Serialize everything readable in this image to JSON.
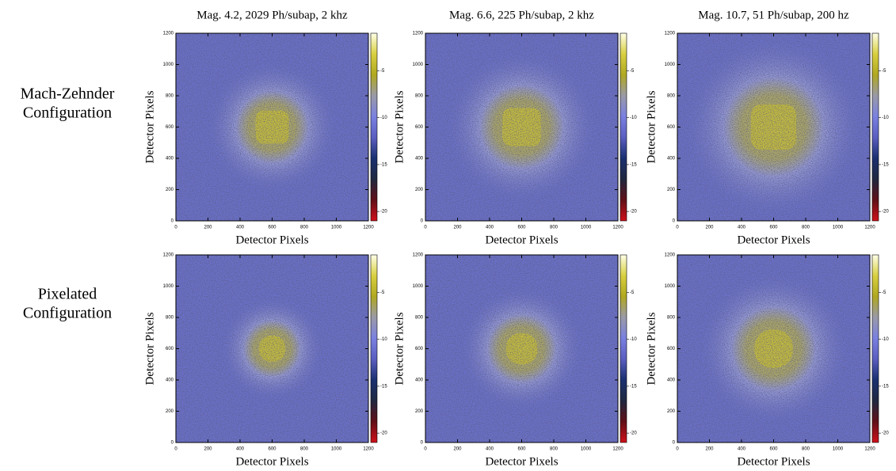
{
  "row_labels": [
    [
      "Mach-Zehnder",
      "Configuration"
    ],
    [
      "Pixelated",
      "Configuration"
    ]
  ],
  "chart_data": [
    {
      "type": "heatmap",
      "title": "Mag. 4.2, 2029 Ph/subap, 2 khz",
      "xlabel": "Detector Pixels",
      "ylabel": "Detector Pixels",
      "xlim": [
        0,
        1200
      ],
      "ylim": [
        0,
        1200
      ],
      "xticks": [
        0,
        200,
        400,
        600,
        800,
        1000,
        1200
      ],
      "yticks": [
        0,
        200,
        400,
        600,
        800,
        1000,
        1200
      ],
      "clim": [
        -21,
        -1
      ],
      "cticks": [
        -5,
        -10,
        -15,
        -20
      ],
      "colormap": [
        "#d0101a",
        "#601018",
        "#202840",
        "#1a3070",
        "#5a5ec0",
        "#7a80e0",
        "#9a9aa8",
        "#b0a820",
        "#d8d040",
        "#ffffe8"
      ]
    },
    {
      "type": "heatmap",
      "title": "Mag. 6.6, 225 Ph/subap, 2 khz",
      "xlabel": "Detector Pixels",
      "ylabel": "Detector Pixels",
      "xlim": [
        0,
        1200
      ],
      "ylim": [
        0,
        1200
      ],
      "xticks": [
        0,
        200,
        400,
        600,
        800,
        1000,
        1200
      ],
      "yticks": [
        0,
        200,
        400,
        600,
        800,
        1000,
        1200
      ],
      "clim": [
        -21,
        -1
      ],
      "cticks": [
        -5,
        -10,
        -15,
        -20
      ],
      "colormap": [
        "#d0101a",
        "#601018",
        "#202840",
        "#1a3070",
        "#5a5ec0",
        "#7a80e0",
        "#9a9aa8",
        "#b0a820",
        "#d8d040",
        "#ffffe8"
      ]
    },
    {
      "type": "heatmap",
      "title": "Mag. 10.7, 51 Ph/subap, 200 hz",
      "xlabel": "Detector Pixels",
      "ylabel": "Detector Pixels",
      "xlim": [
        0,
        1200
      ],
      "ylim": [
        0,
        1200
      ],
      "xticks": [
        0,
        200,
        400,
        600,
        800,
        1000,
        1200
      ],
      "yticks": [
        0,
        200,
        400,
        600,
        800,
        1000,
        1200
      ],
      "clim": [
        -21,
        -1
      ],
      "cticks": [
        -5,
        -10,
        -15,
        -20
      ],
      "colormap": [
        "#d0101a",
        "#601018",
        "#202840",
        "#1a3070",
        "#5a5ec0",
        "#7a80e0",
        "#9a9aa8",
        "#b0a820",
        "#d8d040",
        "#ffffe8"
      ]
    },
    {
      "type": "heatmap",
      "xlabel": "Detector Pixels",
      "ylabel": "Detector Pixels",
      "xlim": [
        0,
        1200
      ],
      "ylim": [
        0,
        1200
      ],
      "xticks": [
        0,
        200,
        400,
        600,
        800,
        1000,
        1200
      ],
      "yticks": [
        0,
        200,
        400,
        600,
        800,
        1000,
        1200
      ],
      "clim": [
        -21,
        -1
      ],
      "cticks": [
        -5,
        -10,
        -15,
        -20
      ],
      "colormap": [
        "#d0101a",
        "#601018",
        "#202840",
        "#1a3070",
        "#5a5ec0",
        "#7a80e0",
        "#9a9aa8",
        "#b0a820",
        "#d8d040",
        "#ffffe8"
      ]
    },
    {
      "type": "heatmap",
      "xlabel": "Detector Pixels",
      "ylabel": "Detector Pixels",
      "xlim": [
        0,
        1200
      ],
      "ylim": [
        0,
        1200
      ],
      "xticks": [
        0,
        200,
        400,
        600,
        800,
        1000,
        1200
      ],
      "yticks": [
        0,
        200,
        400,
        600,
        800,
        1000,
        1200
      ],
      "clim": [
        -21,
        -1
      ],
      "cticks": [
        -5,
        -10,
        -15,
        -20
      ],
      "colormap": [
        "#d0101a",
        "#601018",
        "#202840",
        "#1a3070",
        "#5a5ec0",
        "#7a80e0",
        "#9a9aa8",
        "#b0a820",
        "#d8d040",
        "#ffffe8"
      ]
    },
    {
      "type": "heatmap",
      "xlabel": "Detector Pixels",
      "ylabel": "Detector Pixels",
      "xlim": [
        0,
        1200
      ],
      "ylim": [
        0,
        1200
      ],
      "xticks": [
        0,
        200,
        400,
        600,
        800,
        1000,
        1200
      ],
      "yticks": [
        0,
        200,
        400,
        600,
        800,
        1000,
        1200
      ],
      "clim": [
        -21,
        -1
      ],
      "cticks": [
        -5,
        -10,
        -15,
        -20
      ],
      "colormap": [
        "#d0101a",
        "#601018",
        "#202840",
        "#1a3070",
        "#5a5ec0",
        "#7a80e0",
        "#9a9aa8",
        "#b0a820",
        "#d8d040",
        "#ffffe8"
      ]
    }
  ]
}
